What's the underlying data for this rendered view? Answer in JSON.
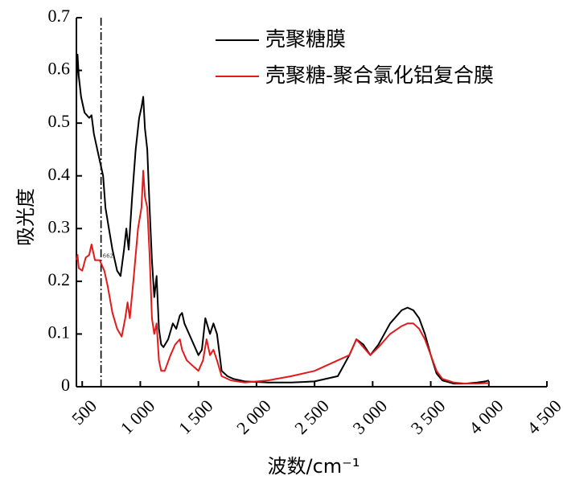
{
  "chart_data": {
    "type": "line",
    "xlabel": "波数/cm⁻¹",
    "ylabel": "吸光度",
    "xlim": [
      450,
      4500
    ],
    "ylim": [
      0,
      0.7
    ],
    "x_ticks": [
      500,
      1000,
      1500,
      2000,
      2500,
      3000,
      3500,
      4000,
      4500
    ],
    "x_tick_labels": [
      "500",
      "1 000",
      "1 500",
      "2 000",
      "2 500",
      "3 000",
      "3 500",
      "4 000",
      "4 500"
    ],
    "y_ticks": [
      0,
      0.1,
      0.2,
      0.3,
      0.4,
      0.5,
      0.6,
      0.7
    ],
    "y_tick_labels": [
      "0",
      "0.1",
      "0.2",
      "0.3",
      "0.4",
      "0.5",
      "0.6",
      "0.7"
    ],
    "reference_line_x": 662,
    "annotation": "662",
    "legend_position": "top-right",
    "series": [
      {
        "name": "壳聚糖膜",
        "color": "#000000",
        "points": [
          [
            450,
            0.57
          ],
          [
            460,
            0.63
          ],
          [
            470,
            0.59
          ],
          [
            490,
            0.55
          ],
          [
            520,
            0.52
          ],
          [
            560,
            0.51
          ],
          [
            580,
            0.515
          ],
          [
            600,
            0.48
          ],
          [
            640,
            0.44
          ],
          [
            680,
            0.4
          ],
          [
            700,
            0.34
          ],
          [
            730,
            0.3
          ],
          [
            760,
            0.26
          ],
          [
            800,
            0.22
          ],
          [
            830,
            0.21
          ],
          [
            860,
            0.26
          ],
          [
            880,
            0.3
          ],
          [
            900,
            0.26
          ],
          [
            930,
            0.36
          ],
          [
            960,
            0.45
          ],
          [
            990,
            0.51
          ],
          [
            1010,
            0.53
          ],
          [
            1025,
            0.55
          ],
          [
            1040,
            0.49
          ],
          [
            1060,
            0.45
          ],
          [
            1080,
            0.34
          ],
          [
            1100,
            0.24
          ],
          [
            1120,
            0.17
          ],
          [
            1140,
            0.21
          ],
          [
            1160,
            0.11
          ],
          [
            1180,
            0.08
          ],
          [
            1200,
            0.075
          ],
          [
            1240,
            0.09
          ],
          [
            1280,
            0.12
          ],
          [
            1310,
            0.11
          ],
          [
            1340,
            0.135
          ],
          [
            1360,
            0.14
          ],
          [
            1380,
            0.12
          ],
          [
            1420,
            0.1
          ],
          [
            1460,
            0.08
          ],
          [
            1500,
            0.06
          ],
          [
            1530,
            0.07
          ],
          [
            1560,
            0.13
          ],
          [
            1600,
            0.1
          ],
          [
            1630,
            0.12
          ],
          [
            1660,
            0.1
          ],
          [
            1700,
            0.03
          ],
          [
            1750,
            0.02
          ],
          [
            1800,
            0.015
          ],
          [
            1900,
            0.01
          ],
          [
            2100,
            0.008
          ],
          [
            2300,
            0.008
          ],
          [
            2500,
            0.01
          ],
          [
            2700,
            0.02
          ],
          [
            2800,
            0.06
          ],
          [
            2860,
            0.09
          ],
          [
            2920,
            0.08
          ],
          [
            2980,
            0.06
          ],
          [
            3050,
            0.08
          ],
          [
            3150,
            0.12
          ],
          [
            3250,
            0.145
          ],
          [
            3300,
            0.15
          ],
          [
            3350,
            0.145
          ],
          [
            3400,
            0.13
          ],
          [
            3450,
            0.1
          ],
          [
            3500,
            0.06
          ],
          [
            3550,
            0.025
          ],
          [
            3600,
            0.012
          ],
          [
            3700,
            0.006
          ],
          [
            3800,
            0.006
          ],
          [
            3900,
            0.008
          ],
          [
            3970,
            0.01
          ],
          [
            4000,
            0.012
          ]
        ]
      },
      {
        "name": "壳聚糖-聚合氯化铝复合膜",
        "color": "#e31a1c",
        "points": [
          [
            450,
            0.24
          ],
          [
            460,
            0.25
          ],
          [
            470,
            0.225
          ],
          [
            500,
            0.22
          ],
          [
            530,
            0.245
          ],
          [
            560,
            0.25
          ],
          [
            580,
            0.27
          ],
          [
            610,
            0.24
          ],
          [
            650,
            0.24
          ],
          [
            690,
            0.22
          ],
          [
            720,
            0.19
          ],
          [
            760,
            0.14
          ],
          [
            800,
            0.11
          ],
          [
            840,
            0.095
          ],
          [
            870,
            0.13
          ],
          [
            890,
            0.16
          ],
          [
            910,
            0.13
          ],
          [
            940,
            0.2
          ],
          [
            980,
            0.3
          ],
          [
            1010,
            0.34
          ],
          [
            1025,
            0.41
          ],
          [
            1040,
            0.36
          ],
          [
            1060,
            0.34
          ],
          [
            1080,
            0.25
          ],
          [
            1100,
            0.13
          ],
          [
            1120,
            0.1
          ],
          [
            1140,
            0.12
          ],
          [
            1160,
            0.05
          ],
          [
            1180,
            0.03
          ],
          [
            1210,
            0.03
          ],
          [
            1260,
            0.06
          ],
          [
            1300,
            0.08
          ],
          [
            1340,
            0.09
          ],
          [
            1360,
            0.07
          ],
          [
            1400,
            0.05
          ],
          [
            1450,
            0.04
          ],
          [
            1500,
            0.03
          ],
          [
            1540,
            0.05
          ],
          [
            1570,
            0.09
          ],
          [
            1600,
            0.06
          ],
          [
            1630,
            0.07
          ],
          [
            1660,
            0.05
          ],
          [
            1700,
            0.02
          ],
          [
            1780,
            0.012
          ],
          [
            1900,
            0.008
          ],
          [
            2100,
            0.012
          ],
          [
            2300,
            0.02
          ],
          [
            2500,
            0.03
          ],
          [
            2700,
            0.05
          ],
          [
            2800,
            0.06
          ],
          [
            2860,
            0.09
          ],
          [
            2920,
            0.075
          ],
          [
            2980,
            0.06
          ],
          [
            3050,
            0.075
          ],
          [
            3150,
            0.1
          ],
          [
            3250,
            0.115
          ],
          [
            3300,
            0.12
          ],
          [
            3350,
            0.12
          ],
          [
            3400,
            0.11
          ],
          [
            3450,
            0.09
          ],
          [
            3500,
            0.06
          ],
          [
            3550,
            0.03
          ],
          [
            3600,
            0.015
          ],
          [
            3700,
            0.008
          ],
          [
            3800,
            0.006
          ],
          [
            3900,
            0.006
          ],
          [
            4000,
            0.007
          ]
        ]
      }
    ]
  }
}
